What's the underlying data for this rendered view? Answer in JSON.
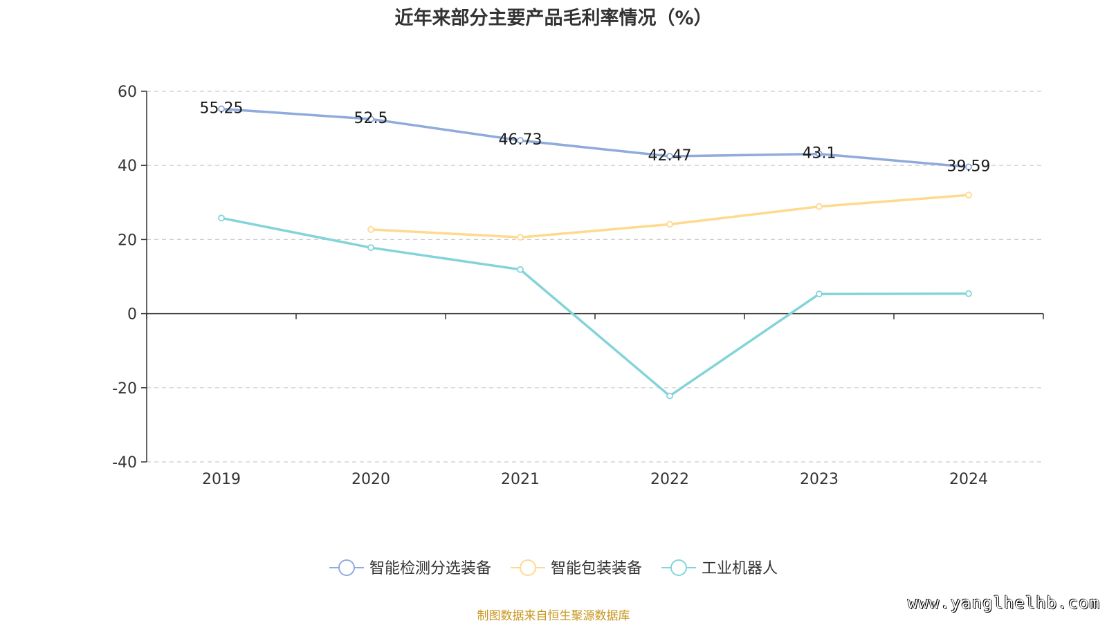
{
  "title": "近年来部分主要产品毛利率情况（%）",
  "source": "制图数据来自恒生聚源数据库",
  "watermark": "www.yanglhelhb.com",
  "chart_data": {
    "type": "line",
    "categories": [
      "2019",
      "2020",
      "2021",
      "2022",
      "2023",
      "2024"
    ],
    "ylim": [
      -40,
      60
    ],
    "yticks": [
      -40,
      -20,
      0,
      20,
      40,
      60
    ],
    "grid": true,
    "legend_position": "bottom",
    "series": [
      {
        "name": "智能检测分选装备",
        "color": "#8faadc",
        "values": [
          55.25,
          52.5,
          46.73,
          42.47,
          43.1,
          39.59
        ],
        "show_labels": true
      },
      {
        "name": "智能包装装备",
        "color": "#ffd98e",
        "values": [
          null,
          22.7,
          20.6,
          24.1,
          28.9,
          32.0
        ],
        "show_labels": false
      },
      {
        "name": "工业机器人",
        "color": "#83d4d8",
        "values": [
          25.8,
          17.8,
          11.9,
          -22.2,
          5.3,
          5.4
        ],
        "show_labels": false
      }
    ]
  }
}
